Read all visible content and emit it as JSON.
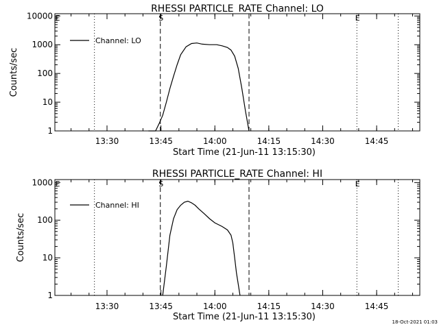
{
  "footer": {
    "timestamp": "18-Oct-2021 01:03"
  },
  "colors": {
    "line": "#000000",
    "background": "#ffffff"
  },
  "chart_data": [
    {
      "type": "line",
      "title": "RHESSI PARTICLE_RATE Channel: LO",
      "xlabel": "Start Time (21-Jun-11 13:15:30)",
      "ylabel": "Counts/sec",
      "y_scale": "log",
      "ylim": [
        1,
        12000
      ],
      "xlim": [
        "13:15:30",
        "14:57:00"
      ],
      "x_ticks": [
        "13:30",
        "13:45",
        "14:00",
        "14:15",
        "14:30",
        "14:45"
      ],
      "y_ticks": [
        "1",
        "10",
        "100",
        "1000",
        "10000"
      ],
      "legend": "top-left",
      "grid": false,
      "series": [
        {
          "name": "Channel: LO",
          "x": [
            "13:41:30",
            "13:43:30",
            "13:44:30",
            "13:45:30",
            "13:46:30",
            "13:47:30",
            "13:48:30",
            "13:49:30",
            "13:50:30",
            "13:52:00",
            "13:53:30",
            "13:55:00",
            "13:56:30",
            "13:58:30",
            "14:00:30",
            "14:02:00",
            "14:03:30",
            "14:04:30",
            "14:05:30",
            "14:06:30",
            "14:07:30",
            "14:08:30",
            "14:09:30"
          ],
          "y": [
            1,
            1,
            1.8,
            3.5,
            10,
            30,
            80,
            200,
            450,
            850,
            1100,
            1150,
            1050,
            1000,
            1000,
            920,
            800,
            650,
            400,
            150,
            30,
            5,
            1
          ]
        }
      ],
      "markers": [
        {
          "label": "S",
          "x": "13:44:50",
          "style": "dashed"
        },
        {
          "label": "",
          "x": "14:09:30",
          "style": "dashed"
        },
        {
          "label": "E",
          "x": "14:39:30",
          "style": "dotted"
        },
        {
          "label": "",
          "x": "13:26:30",
          "style": "dotted"
        },
        {
          "label": "",
          "x": "14:51:00",
          "style": "dotted"
        }
      ],
      "edge_label": "E"
    },
    {
      "type": "line",
      "title": "RHESSI PARTICLE_RATE Channel: HI",
      "xlabel": "Start Time (21-Jun-11 13:15:30)",
      "ylabel": "Counts/sec",
      "y_scale": "log",
      "ylim": [
        1,
        1200
      ],
      "xlim": [
        "13:15:30",
        "14:57:00"
      ],
      "x_ticks": [
        "13:30",
        "13:45",
        "14:00",
        "14:15",
        "14:30",
        "14:45"
      ],
      "y_ticks": [
        "1",
        "10",
        "100",
        "1000"
      ],
      "legend": "top-left",
      "grid": false,
      "series": [
        {
          "name": "Channel: HI",
          "x": [
            "13:45:30",
            "13:46:30",
            "13:47:30",
            "13:48:30",
            "13:49:30",
            "13:50:30",
            "13:51:30",
            "13:52:30",
            "13:53:30",
            "13:54:30",
            "13:55:30",
            "13:57:00",
            "13:58:30",
            "14:00:00",
            "14:02:00",
            "14:03:30",
            "14:04:30",
            "14:05:00",
            "14:05:30",
            "14:06:00",
            "14:06:30",
            "14:07:00"
          ],
          "y": [
            1,
            6,
            40,
            110,
            190,
            250,
            300,
            320,
            290,
            250,
            200,
            150,
            110,
            85,
            68,
            55,
            40,
            25,
            10,
            4,
            2,
            1
          ]
        }
      ],
      "markers": [
        {
          "label": "S",
          "x": "13:44:50",
          "style": "dashed"
        },
        {
          "label": "",
          "x": "14:09:30",
          "style": "dashed"
        },
        {
          "label": "E",
          "x": "14:39:30",
          "style": "dotted"
        },
        {
          "label": "",
          "x": "13:26:30",
          "style": "dotted"
        },
        {
          "label": "",
          "x": "14:51:00",
          "style": "dotted"
        }
      ],
      "edge_label": "E"
    }
  ]
}
